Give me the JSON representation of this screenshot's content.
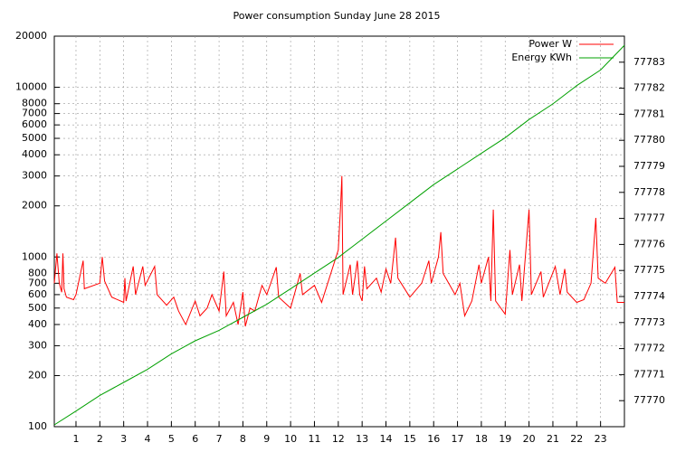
{
  "chart_data": {
    "type": "line",
    "title": "Power consumption Sunday June 28 2015",
    "xlim": [
      0.09,
      24
    ],
    "xticks": [
      1,
      2,
      3,
      4,
      5,
      6,
      7,
      8,
      9,
      10,
      11,
      12,
      13,
      14,
      15,
      16,
      17,
      18,
      19,
      20,
      21,
      22,
      23
    ],
    "ylim": [
      100,
      20000
    ],
    "yticks": [
      100,
      200,
      300,
      400,
      500,
      600,
      700,
      800,
      1000,
      2000,
      3000,
      4000,
      5000,
      6000,
      7000,
      8000,
      10000,
      20000
    ],
    "log_y": true,
    "y2lim": [
      77769,
      77784
    ],
    "y2ticks": [
      77770,
      77771,
      77772,
      77773,
      77774,
      77775,
      77776,
      77777,
      77778,
      77779,
      77780,
      77781,
      77782,
      77783
    ],
    "grid": true,
    "legend": "top-right",
    "series": [
      {
        "name": "Power W",
        "color": "#ff0000",
        "x": [
          0.09,
          0.2,
          0.3,
          0.4,
          0.45,
          0.5,
          0.6,
          0.9,
          1.0,
          1.3,
          1.35,
          2.0,
          2.1,
          2.2,
          2.5,
          3.0,
          3.05,
          3.1,
          3.4,
          3.5,
          3.8,
          3.9,
          4.3,
          4.4,
          4.8,
          5.1,
          5.3,
          5.6,
          6.0,
          6.2,
          6.5,
          6.7,
          7.0,
          7.2,
          7.3,
          7.6,
          7.8,
          8.0,
          8.1,
          8.3,
          8.5,
          8.8,
          9.0,
          9.4,
          9.5,
          10.0,
          10.4,
          10.5,
          11.0,
          11.3,
          12.0,
          12.1,
          12.15,
          12.2,
          12.5,
          12.6,
          12.8,
          12.9,
          13.0,
          13.1,
          13.2,
          13.6,
          13.8,
          14.0,
          14.2,
          14.4,
          14.5,
          15.0,
          15.5,
          15.8,
          15.9,
          16.2,
          16.3,
          16.4,
          16.9,
          17.1,
          17.3,
          17.6,
          17.9,
          18.0,
          18.3,
          18.4,
          18.5,
          18.6,
          19.0,
          19.2,
          19.3,
          19.6,
          19.7,
          20.0,
          20.1,
          20.5,
          20.6,
          21.1,
          21.3,
          21.5,
          21.6,
          22.0,
          22.3,
          22.6,
          22.8,
          22.9,
          23.2,
          23.6,
          23.7,
          24.0
        ],
        "values": [
          700,
          1050,
          700,
          620,
          1050,
          650,
          580,
          560,
          600,
          950,
          650,
          700,
          1000,
          720,
          580,
          540,
          750,
          550,
          880,
          600,
          880,
          680,
          880,
          600,
          520,
          580,
          480,
          400,
          550,
          450,
          500,
          600,
          480,
          820,
          450,
          540,
          400,
          620,
          390,
          500,
          480,
          680,
          600,
          870,
          580,
          500,
          800,
          600,
          680,
          540,
          1100,
          2000,
          3000,
          600,
          900,
          600,
          950,
          600,
          550,
          880,
          650,
          750,
          620,
          850,
          700,
          1300,
          750,
          580,
          700,
          950,
          700,
          1000,
          1400,
          800,
          600,
          700,
          450,
          550,
          900,
          700,
          1000,
          550,
          1900,
          550,
          460,
          1100,
          600,
          900,
          550,
          1900,
          600,
          820,
          580,
          880,
          600,
          850,
          620,
          540,
          560,
          700,
          1700,
          750,
          700,
          870,
          540,
          540
        ]
      },
      {
        "name": "Energy KWh",
        "color": "#00a000",
        "axis": "y2",
        "x": [
          0.09,
          1,
          2,
          3,
          4,
          5,
          6,
          7,
          8,
          9,
          10,
          11,
          12,
          13,
          14,
          15,
          16,
          17,
          18,
          19,
          20,
          21,
          22,
          23,
          24
        ],
        "values": [
          77769.07,
          77769.6,
          77770.2,
          77770.7,
          77771.2,
          77771.8,
          77772.3,
          77772.7,
          77773.2,
          77773.7,
          77774.3,
          77774.9,
          77775.5,
          77776.2,
          77776.9,
          77777.6,
          77778.3,
          77778.9,
          77779.5,
          77780.1,
          77780.8,
          77781.4,
          77782.1,
          77782.7,
          77783.65
        ]
      }
    ]
  }
}
